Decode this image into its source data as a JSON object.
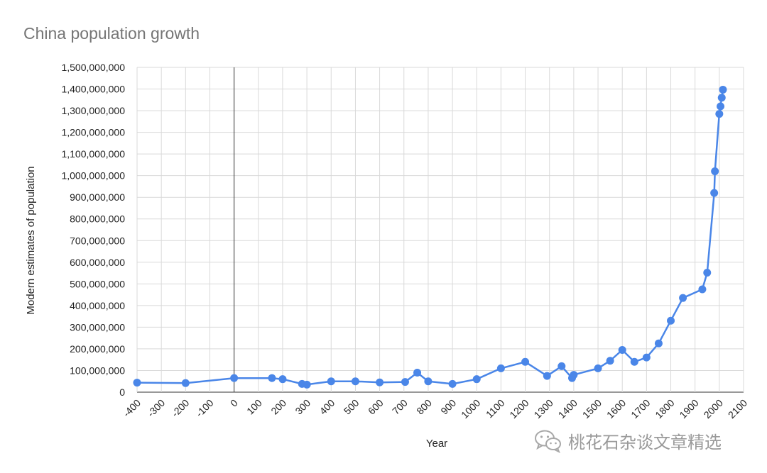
{
  "chart_data": {
    "type": "line",
    "title": "China population growth",
    "xlabel": "Year",
    "ylabel": "Modern estimates of population",
    "xlim": [
      -400,
      2100
    ],
    "ylim": [
      0,
      1500000000
    ],
    "x_ticks": [
      "-400",
      "-300",
      "-200",
      "-100",
      "0",
      "100",
      "200",
      "300",
      "400",
      "500",
      "600",
      "700",
      "800",
      "900",
      "1000",
      "1100",
      "1200",
      "1300",
      "1400",
      "1500",
      "1600",
      "1700",
      "1800",
      "1900",
      "2000",
      "2100"
    ],
    "y_ticks": [
      "0",
      "100,000,000",
      "200,000,000",
      "300,000,000",
      "400,000,000",
      "500,000,000",
      "600,000,000",
      "700,000,000",
      "800,000,000",
      "900,000,000",
      "1,000,000,000",
      "1,100,000,000",
      "1,200,000,000",
      "1,300,000,000",
      "1,400,000,000",
      "1,500,000,000"
    ],
    "grid": true,
    "line_color": "#4a86e8",
    "series": [
      {
        "x": [
          -400,
          -200,
          0,
          156,
          200,
          280,
          300,
          400,
          500,
          600,
          705,
          755,
          800,
          900,
          1000,
          1100,
          1200,
          1290,
          1350,
          1393,
          1400,
          1500,
          1550,
          1600,
          1650,
          1700,
          1750,
          1800,
          1850,
          1930,
          1950,
          1979,
          1982,
          2000,
          2005,
          2010,
          2015
        ],
        "y": [
          44000000,
          42000000,
          65000000,
          65000000,
          60000000,
          38000000,
          35000000,
          50000000,
          50000000,
          45000000,
          47000000,
          90000000,
          50000000,
          38000000,
          60000000,
          110000000,
          140000000,
          75000000,
          120000000,
          65000000,
          80000000,
          110000000,
          145000000,
          195000000,
          140000000,
          160000000,
          225000000,
          330000000,
          435000000,
          475000000,
          552000000,
          920000000,
          1020000000,
          1285000000,
          1320000000,
          1360000000,
          1397000000
        ]
      }
    ]
  },
  "watermark": {
    "text": "桃花石杂谈文章精选",
    "icon": "wechat-icon"
  }
}
